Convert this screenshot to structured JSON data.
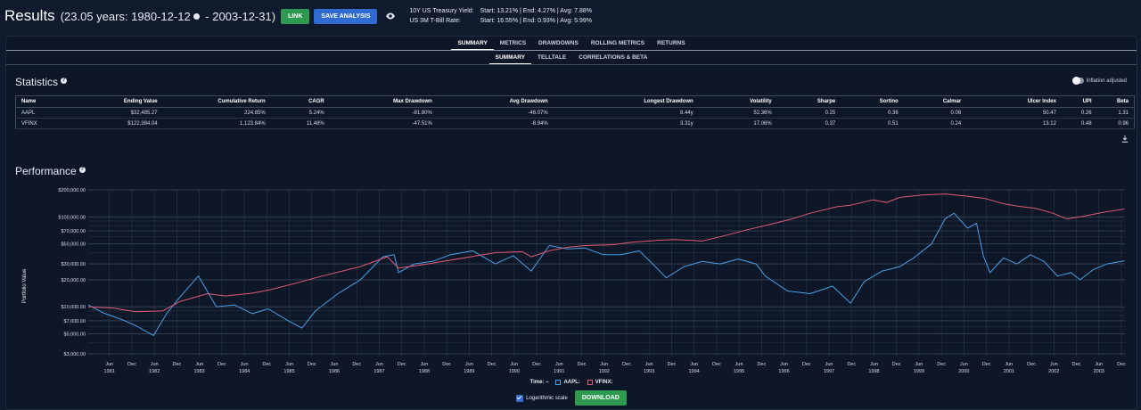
{
  "header": {
    "title": "Results",
    "range_prefix": "(23.05 years: 1980-12-12",
    "range_suffix": " - 2003-12-31)",
    "link_label": "LINK",
    "save_label": "SAVE ANALYSIS",
    "yields": [
      {
        "label": "10Y US Treasury Yield:",
        "value": "Start: 13.21%  |  End: 4.27%  |  Avg: 7.88%"
      },
      {
        "label": "US 3M T-Bill Rate:",
        "value": "Start: 16.55%  |  End: 0.93%  |  Avg: 5.99%"
      }
    ]
  },
  "tabs_primary": [
    "SUMMARY",
    "METRICS",
    "DRAWDOWNS",
    "ROLLING METRICS",
    "RETURNS"
  ],
  "tabs_secondary": [
    "SUMMARY",
    "TELLTALE",
    "CORRELATIONS & BETA"
  ],
  "statistics": {
    "heading": "Statistics",
    "inflation_label": "Inflation adjusted",
    "columns": [
      "Name",
      "Ending Value",
      "Cumulative Return",
      "CAGR",
      "Max Drawdown",
      "Avg Drawdown",
      "Longest Drawdown",
      "Volatility",
      "Sharpe",
      "Sortino",
      "Calmar",
      "Ulcer Index",
      "UPI",
      "Beta"
    ],
    "rows": [
      [
        "AAPL",
        "$32,485.27",
        "224.85%",
        "5.24%",
        "-81.80%",
        "-46.07%",
        "8.44y",
        "52.36%",
        "0.25",
        "0.36",
        "0.06",
        "50.47",
        "0.26",
        "1.31"
      ],
      [
        "VFINX",
        "$122,384.04",
        "1,123.84%",
        "11.48%",
        "-47.51%",
        "-8.94%",
        "3.31y",
        "17.06%",
        "0.37",
        "0.51",
        "0.24",
        "13.12",
        "0.48",
        "0.96"
      ]
    ]
  },
  "performance": {
    "heading": "Performance",
    "legend_time": "Time: –",
    "log_label": "Logarithmic scale",
    "download_label": "DOWNLOAD"
  },
  "chart_data": {
    "type": "line",
    "ylabel": "Portfolio Value",
    "y_scale": "log",
    "ylim": [
      2800,
      200000
    ],
    "y_ticks": [
      3000,
      5000,
      7000,
      10000,
      20000,
      30000,
      50000,
      70000,
      100000,
      200000
    ],
    "y_tick_labels": [
      "$3,000.00",
      "$5,000.00",
      "$7,000.00",
      "$10,000.00",
      "$20,000.00",
      "$30,000.00",
      "$50,000.00",
      "$70,000.00",
      "$100,000.00",
      "$200,000.00"
    ],
    "xlim": [
      1980.95,
      2004.0
    ],
    "year_labels": [
      "1981",
      "1982",
      "1983",
      "1984",
      "1985",
      "1986",
      "1987",
      "1988",
      "1989",
      "1990",
      "1991",
      "1992",
      "1993",
      "1994",
      "1995",
      "1996",
      "1997",
      "1998",
      "1999",
      "2000",
      "2001",
      "2002",
      "2003"
    ],
    "series": [
      {
        "name": "AAPL",
        "color": "#4a9fe6",
        "x": [
          1980.95,
          1981.3,
          1981.7,
          1982.0,
          1982.4,
          1982.7,
          1983.0,
          1983.4,
          1983.8,
          1984.2,
          1984.6,
          1984.95,
          1985.4,
          1985.7,
          1986.0,
          1986.5,
          1987.0,
          1987.5,
          1987.75,
          1987.85,
          1988.2,
          1988.6,
          1989.0,
          1989.5,
          1990.0,
          1990.4,
          1990.8,
          1991.2,
          1991.6,
          1992.0,
          1992.4,
          1992.8,
          1993.2,
          1993.5,
          1993.8,
          1994.2,
          1994.6,
          1995.0,
          1995.4,
          1995.8,
          1996.0,
          1996.5,
          1997.0,
          1997.5,
          1997.9,
          1998.2,
          1998.6,
          1999.0,
          1999.3,
          1999.7,
          2000.0,
          2000.2,
          2000.5,
          2000.7,
          2000.85,
          2001.0,
          2001.3,
          2001.6,
          2001.9,
          2002.2,
          2002.5,
          2002.8,
          2003.0,
          2003.3,
          2003.6,
          2003.99
        ],
        "y": [
          10500,
          8500,
          7200,
          6200,
          4800,
          8500,
          13000,
          22000,
          10000,
          10500,
          8400,
          9500,
          7000,
          5800,
          9000,
          14000,
          20000,
          36000,
          38000,
          24000,
          30000,
          32000,
          38000,
          42000,
          30000,
          37000,
          25000,
          48000,
          44000,
          45000,
          38000,
          38000,
          42000,
          30000,
          21000,
          28000,
          32000,
          30000,
          34000,
          30000,
          22000,
          15000,
          14000,
          17000,
          11000,
          19000,
          25000,
          28000,
          35000,
          50000,
          95000,
          110000,
          75000,
          85000,
          37000,
          24000,
          35000,
          30000,
          38000,
          32000,
          22000,
          24000,
          20000,
          26000,
          30000,
          32485
        ]
      },
      {
        "name": "VFINX",
        "color": "#e05a74",
        "x": [
          1980.95,
          1981.5,
          1982.0,
          1982.6,
          1983.0,
          1983.6,
          1984.0,
          1984.6,
          1985.0,
          1985.6,
          1986.0,
          1986.6,
          1987.0,
          1987.6,
          1987.85,
          1988.5,
          1989.0,
          1989.6,
          1990.0,
          1990.6,
          1990.8,
          1991.2,
          1991.6,
          1992.0,
          1992.6,
          1993.0,
          1993.6,
          1994.0,
          1994.6,
          1995.0,
          1995.6,
          1996.0,
          1996.6,
          1997.0,
          1997.6,
          1997.9,
          1998.4,
          1998.7,
          1999.0,
          1999.5,
          2000.0,
          2000.5,
          2000.9,
          2001.3,
          2001.7,
          2002.0,
          2002.4,
          2002.7,
          2003.0,
          2003.5,
          2003.99
        ],
        "y": [
          10000,
          9700,
          8800,
          9000,
          11500,
          14000,
          13200,
          14200,
          15500,
          18500,
          21000,
          25000,
          28000,
          36000,
          27000,
          30000,
          33000,
          37000,
          40000,
          41000,
          36000,
          42000,
          46000,
          48000,
          49000,
          52000,
          55000,
          56000,
          54000,
          60000,
          72000,
          80000,
          95000,
          110000,
          130000,
          135000,
          155000,
          145000,
          165000,
          175000,
          180000,
          170000,
          160000,
          140000,
          130000,
          125000,
          110000,
          95000,
          100000,
          112000,
          122384
        ]
      }
    ]
  }
}
